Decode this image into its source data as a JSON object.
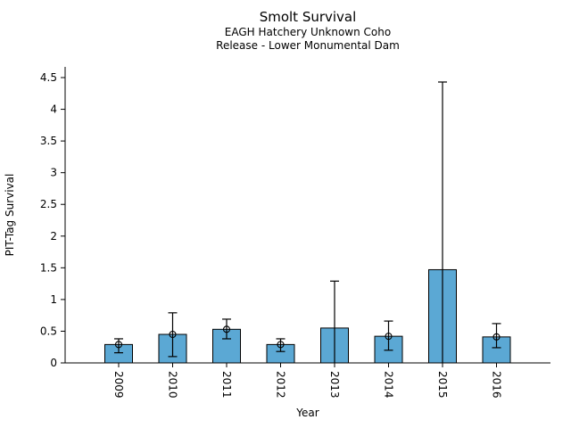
{
  "chart_data": {
    "type": "bar",
    "title": "Smolt Survival",
    "subtitle": [
      "EAGH Hatchery Unknown Coho",
      "Release - Lower Monumental Dam"
    ],
    "xlabel": "Year",
    "ylabel": "PIT-Tag Survival",
    "categories": [
      "2009",
      "2010",
      "2011",
      "2012",
      "2013",
      "2014",
      "2015",
      "2016"
    ],
    "values": [
      0.29,
      0.45,
      0.53,
      0.29,
      0.55,
      0.42,
      1.47,
      0.41
    ],
    "error_low": [
      0.16,
      0.1,
      0.38,
      0.18,
      0,
      0.2,
      0,
      0.24
    ],
    "error_high": [
      0.38,
      0.79,
      0.69,
      0.38,
      1.29,
      0.66,
      4.43,
      0.62
    ],
    "point_marker_shown": [
      true,
      true,
      true,
      true,
      false,
      true,
      false,
      true
    ],
    "ylim": [
      0,
      4.67
    ],
    "yticks": [
      0,
      0.5,
      1,
      1.5,
      2,
      2.5,
      3,
      3.5,
      4,
      4.5
    ],
    "ytick_labels": [
      "0",
      "0.5",
      "1",
      "1.5",
      "2",
      "2.5",
      "3",
      "3.5",
      "4",
      "4.5"
    ],
    "grid": false,
    "legend": "none",
    "bar_color": "#5BA8D4",
    "edge_color": "#000000",
    "error_color": "#000000",
    "background_color": "#FFFFFF"
  }
}
